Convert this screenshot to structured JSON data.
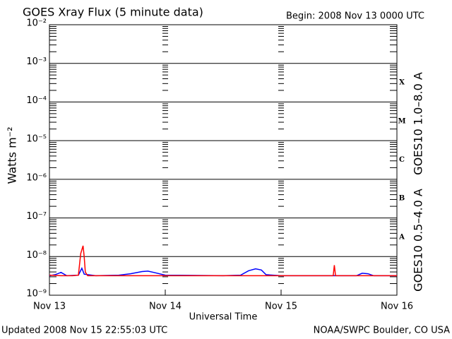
{
  "chart_data": {
    "type": "line",
    "title": "GOES Xray Flux (5 minute data)",
    "subtitle": "Begin:  2008 Nov 13 0000 UTC",
    "x_label": "Universal Time",
    "y_label": "Watts m⁻²",
    "footer_left": "Updated 2008 Nov 15 22:55:03 UTC",
    "footer_right": "NOAA/SWPC Boulder, CO USA",
    "log_scale": true,
    "grid": true,
    "flare_classes": [
      "A",
      "B",
      "C",
      "M",
      "X"
    ],
    "xlim": [
      0,
      3
    ],
    "xticks": [
      {
        "value": 0,
        "label": "Nov 13"
      },
      {
        "value": 1,
        "label": "Nov 14"
      },
      {
        "value": 2,
        "label": "Nov 15"
      },
      {
        "value": 3,
        "label": "Nov 16"
      }
    ],
    "ylim": [
      1e-09,
      0.01
    ],
    "yticks": [
      {
        "value": 1e-09,
        "label": "10⁻⁹"
      },
      {
        "value": 1e-08,
        "label": "10⁻⁸"
      },
      {
        "value": 1e-07,
        "label": "10⁻⁷"
      },
      {
        "value": 1e-06,
        "label": "10⁻⁶"
      },
      {
        "value": 1e-05,
        "label": "10⁻⁵"
      },
      {
        "value": 0.0001,
        "label": "10⁻⁴"
      },
      {
        "value": 0.001,
        "label": "10⁻³"
      },
      {
        "value": 0.01,
        "label": "10⁻²"
      }
    ],
    "series": [
      {
        "name": "GOES10 0.5–4.0 A",
        "color": "#0000ff",
        "x": [
          0,
          0.05,
          0.1,
          0.15,
          0.25,
          0.28,
          0.3,
          0.4,
          0.6,
          0.7,
          0.8,
          0.85,
          0.9,
          1.0,
          1.5,
          1.65,
          1.72,
          1.78,
          1.83,
          1.87,
          2.0,
          2.65,
          2.7,
          2.75,
          2.8,
          3.0
        ],
        "values": [
          3.2e-09,
          3.4e-09,
          3.9e-09,
          3.2e-09,
          3.3e-09,
          5e-09,
          3.5e-09,
          3.2e-09,
          3.3e-09,
          3.6e-09,
          4.1e-09,
          4.2e-09,
          3.9e-09,
          3.3e-09,
          3.2e-09,
          3.3e-09,
          4.3e-09,
          4.8e-09,
          4.5e-09,
          3.4e-09,
          3.2e-09,
          3.2e-09,
          3.7e-09,
          3.6e-09,
          3.2e-09,
          3.2e-09
        ]
      },
      {
        "name": "GOES10 1.0–8.0 A",
        "color": "#ff0000",
        "x": [
          0,
          0.1,
          0.2,
          0.25,
          0.27,
          0.29,
          0.3,
          0.31,
          0.33,
          0.6,
          1.0,
          1.5,
          2.0,
          2.45,
          2.46,
          2.47,
          3.0
        ],
        "values": [
          3.3e-09,
          3.2e-09,
          3.2e-09,
          3.3e-09,
          1.2e-08,
          1.9e-08,
          1e-08,
          4e-09,
          3.2e-09,
          3.2e-09,
          3.2e-09,
          3.2e-09,
          3.2e-09,
          3.2e-09,
          6e-09,
          3.2e-09,
          3.2e-09
        ]
      }
    ]
  }
}
